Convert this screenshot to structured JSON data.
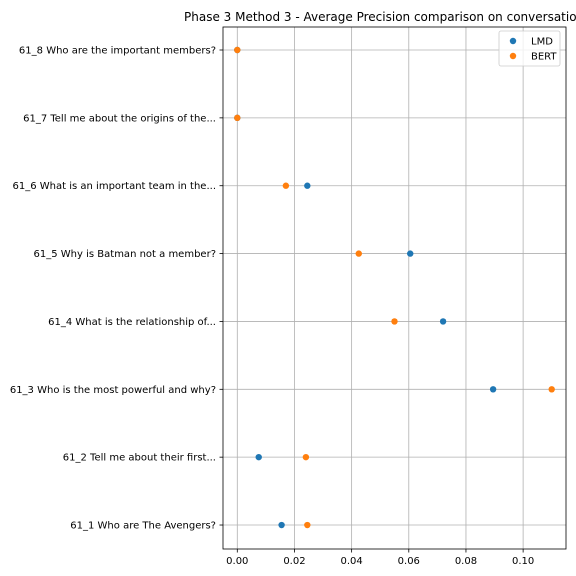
{
  "chart_data": {
    "type": "scatter",
    "title": "Phase 3 Method 3 - Average Precision comparison on conversatio",
    "xlabel": "",
    "ylabel": "",
    "grid": true,
    "legend_placement": "top-right",
    "xlim": [
      -0.005,
      0.115
    ],
    "x_ticks": [
      "0.00",
      "0.02",
      "0.04",
      "0.06",
      "0.08",
      "0.10"
    ],
    "categories": [
      "61_1 Who are The Avengers?",
      "61_2 Tell me about their first...",
      "61_3 Who is the most powerful and why?",
      "61_4 What is the relationship of...",
      "61_5 Why is Batman not a member?",
      "61_6 What is an important team in the...",
      "61_7 Tell me about the origins of the...",
      "61_8 Who are the important members?"
    ],
    "series": [
      {
        "name": "LMD",
        "color": "#1f77b4",
        "values": [
          0.0155,
          0.0075,
          0.0895,
          0.072,
          0.0605,
          0.0245,
          0.0,
          0.0
        ]
      },
      {
        "name": "BERT",
        "color": "#ff7f0e",
        "values": [
          0.0245,
          0.024,
          0.11,
          0.055,
          0.0425,
          0.017,
          0.0,
          0.0
        ]
      }
    ]
  }
}
